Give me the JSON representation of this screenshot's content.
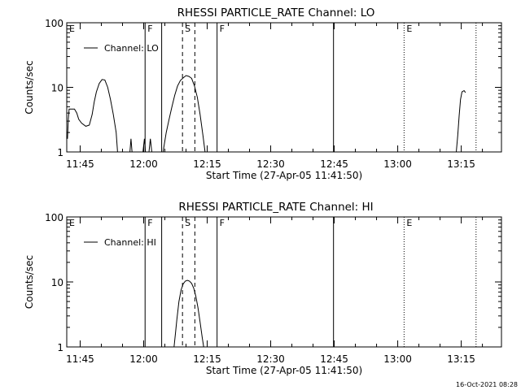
{
  "footer": {
    "timestamp": "16-Oct-2021 08:28"
  },
  "chart_data": [
    {
      "type": "line",
      "title": "RHESSI PARTICLE_RATE Channel: LO",
      "xlabel": "Start Time (27-Apr-05 11:41:50)",
      "ylabel": "Counts/sec",
      "y_scale": "log",
      "ylim": [
        1,
        100
      ],
      "y_ticks": [
        {
          "value": 1,
          "label": "1"
        },
        {
          "value": 10,
          "label": "10"
        },
        {
          "value": 100,
          "label": "100"
        }
      ],
      "xlim": [
        "11:41:50",
        "13:24:30"
      ],
      "x_ticks": [
        "11:45",
        "12:00",
        "12:15",
        "12:30",
        "12:45",
        "13:00",
        "13:15"
      ],
      "grid": false,
      "legend": {
        "position": "top-left",
        "entries": [
          "Channel: LO"
        ]
      },
      "series": [
        {
          "name": "Channel: LO",
          "segments": [
            [
              [
                "11:42:00",
                1.6
              ],
              [
                "11:42:12",
                3.2
              ],
              [
                "11:42:24",
                4.6
              ],
              [
                "11:43:00",
                4.6
              ],
              [
                "11:43:40",
                4.6
              ],
              [
                "11:44:12",
                4.0
              ],
              [
                "11:44:40",
                3.2
              ],
              [
                "11:45:20",
                2.8
              ],
              [
                "11:46:20",
                2.5
              ],
              [
                "11:47:10",
                2.6
              ],
              [
                "11:47:50",
                3.8
              ],
              [
                "11:48:20",
                6.0
              ],
              [
                "11:48:50",
                8.5
              ],
              [
                "11:49:30",
                11.5
              ],
              [
                "11:50:10",
                13.2
              ],
              [
                "11:50:50",
                13.0
              ],
              [
                "11:51:30",
                10.0
              ],
              [
                "11:52:10",
                6.5
              ],
              [
                "11:52:50",
                3.8
              ],
              [
                "11:53:30",
                2.0
              ],
              [
                "11:53:50",
                1.0
              ]
            ],
            [
              [
                "11:56:45",
                1.0
              ],
              [
                "11:57:00",
                1.6
              ],
              [
                "11:57:15",
                1.0
              ]
            ],
            [
              [
                "11:59:50",
                1.0
              ],
              [
                "12:00:10",
                1.6
              ],
              [
                "12:00:25",
                1.0
              ]
            ],
            [
              [
                "12:01:15",
                1.0
              ],
              [
                "12:01:35",
                1.6
              ],
              [
                "12:01:55",
                1.0
              ]
            ],
            [
              [
                "12:04:35",
                1.0
              ],
              [
                "12:05:20",
                2.0
              ],
              [
                "12:06:00",
                3.2
              ],
              [
                "12:06:40",
                5.0
              ],
              [
                "12:07:20",
                7.5
              ],
              [
                "12:08:00",
                10.5
              ],
              [
                "12:08:40",
                12.8
              ],
              [
                "12:09:20",
                14.0
              ],
              [
                "12:10:00",
                15.2
              ],
              [
                "12:10:40",
                14.8
              ],
              [
                "12:11:20",
                13.8
              ],
              [
                "12:12:00",
                10.5
              ],
              [
                "12:12:40",
                7.0
              ],
              [
                "12:13:20",
                3.8
              ],
              [
                "12:14:00",
                1.8
              ],
              [
                "12:14:30",
                1.0
              ]
            ],
            [
              [
                "13:13:50",
                1.0
              ],
              [
                "13:14:10",
                1.8
              ],
              [
                "13:14:30",
                3.6
              ],
              [
                "13:14:50",
                6.5
              ],
              [
                "13:15:10",
                8.5
              ],
              [
                "13:15:40",
                8.9
              ],
              [
                "13:16:00",
                8.3
              ]
            ]
          ]
        }
      ],
      "annotations": [
        {
          "label": "E",
          "time": "11:41:50",
          "style": "dotted"
        },
        {
          "label": "F",
          "time": "12:00:20",
          "style": "solid"
        },
        {
          "label": "",
          "time": "12:04:15",
          "style": "solid"
        },
        {
          "label": "S",
          "time": "12:09:10",
          "style": "dashed"
        },
        {
          "label": "",
          "time": "12:12:05",
          "style": "dashed"
        },
        {
          "label": "F",
          "time": "12:17:20",
          "style": "solid"
        },
        {
          "label": "",
          "time": "12:44:50",
          "style": "solid"
        },
        {
          "label": "E",
          "time": "13:01:30",
          "style": "dotted"
        },
        {
          "label": "",
          "time": "13:18:30",
          "style": "dotted"
        }
      ]
    },
    {
      "type": "line",
      "title": "RHESSI PARTICLE_RATE Channel: HI",
      "xlabel": "Start Time (27-Apr-05 11:41:50)",
      "ylabel": "Counts/sec",
      "y_scale": "log",
      "ylim": [
        1,
        100
      ],
      "y_ticks": [
        {
          "value": 1,
          "label": "1"
        },
        {
          "value": 10,
          "label": "10"
        },
        {
          "value": 100,
          "label": "100"
        }
      ],
      "xlim": [
        "11:41:50",
        "13:24:30"
      ],
      "x_ticks": [
        "11:45",
        "12:00",
        "12:15",
        "12:30",
        "12:45",
        "13:00",
        "13:15"
      ],
      "grid": false,
      "legend": {
        "position": "top-left",
        "entries": [
          "Channel: HI"
        ]
      },
      "series": [
        {
          "name": "Channel: HI",
          "segments": [
            [
              [
                "12:07:10",
                1.0
              ],
              [
                "12:07:30",
                1.6
              ],
              [
                "12:07:50",
                2.6
              ],
              [
                "12:08:20",
                5.0
              ],
              [
                "12:08:50",
                7.5
              ],
              [
                "12:09:20",
                9.3
              ],
              [
                "12:09:50",
                10.3
              ],
              [
                "12:10:20",
                10.6
              ],
              [
                "12:10:50",
                10.3
              ],
              [
                "12:11:20",
                9.5
              ],
              [
                "12:11:50",
                8.0
              ],
              [
                "12:12:20",
                6.0
              ],
              [
                "12:12:50",
                4.0
              ],
              [
                "12:13:20",
                2.4
              ],
              [
                "12:13:50",
                1.4
              ],
              [
                "12:14:10",
                1.0
              ]
            ]
          ]
        }
      ],
      "annotations": [
        {
          "label": "E",
          "time": "11:41:50",
          "style": "dotted"
        },
        {
          "label": "F",
          "time": "12:00:20",
          "style": "solid"
        },
        {
          "label": "",
          "time": "12:04:15",
          "style": "solid"
        },
        {
          "label": "S",
          "time": "12:09:10",
          "style": "dashed"
        },
        {
          "label": "",
          "time": "12:12:05",
          "style": "dashed"
        },
        {
          "label": "F",
          "time": "12:17:20",
          "style": "solid"
        },
        {
          "label": "",
          "time": "12:44:50",
          "style": "solid"
        },
        {
          "label": "E",
          "time": "13:01:30",
          "style": "dotted"
        },
        {
          "label": "",
          "time": "13:18:30",
          "style": "dotted"
        }
      ]
    }
  ]
}
